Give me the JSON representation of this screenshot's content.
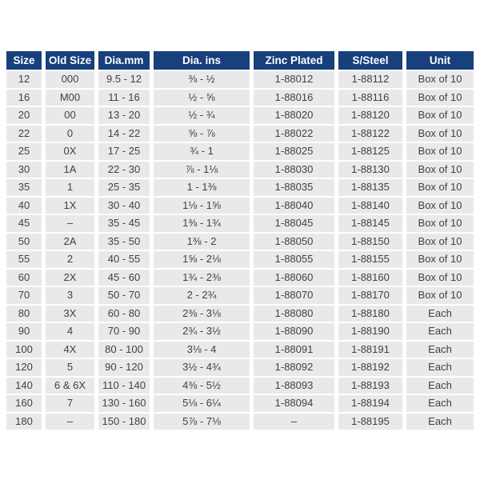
{
  "colors": {
    "header_bg": "#17407c",
    "header_text": "#ffffff",
    "row_bg": "#e9e9eb",
    "row_text": "#414042",
    "page_bg": "#ffffff"
  },
  "table": {
    "headers": [
      "Size",
      "Old Size",
      "Dia.mm",
      "Dia. ins",
      "Zinc Plated",
      "S/Steel",
      "Unit"
    ],
    "rows": [
      [
        "12",
        "000",
        "9.5 - 12",
        "⅜ - ½",
        "1-88012",
        "1-88112",
        "Box of 10"
      ],
      [
        "16",
        "M00",
        "11 - 16",
        "½ - ⅝",
        "1-88016",
        "1-88116",
        "Box of 10"
      ],
      [
        "20",
        "00",
        "13 - 20",
        "½ - ¾",
        "1-88020",
        "1-88120",
        "Box of 10"
      ],
      [
        "22",
        "0",
        "14 - 22",
        "⅝ - ⅞",
        "1-88022",
        "1-88122",
        "Box of 10"
      ],
      [
        "25",
        "0X",
        "17 - 25",
        "¾ - 1",
        "1-88025",
        "1-88125",
        "Box of 10"
      ],
      [
        "30",
        "1A",
        "22 - 30",
        "⅞ - 1⅛",
        "1-88030",
        "1-88130",
        "Box of 10"
      ],
      [
        "35",
        "1",
        "25 - 35",
        "1 - 1⅜",
        "1-88035",
        "1-88135",
        "Box of 10"
      ],
      [
        "40",
        "1X",
        "30 - 40",
        "1⅛ - 1⅝",
        "1-88040",
        "1-88140",
        "Box of 10"
      ],
      [
        "45",
        "–",
        "35 - 45",
        "1⅜ - 1¾",
        "1-88045",
        "1-88145",
        "Box of 10"
      ],
      [
        "50",
        "2A",
        "35 - 50",
        "1⅜ - 2",
        "1-88050",
        "1-88150",
        "Box of 10"
      ],
      [
        "55",
        "2",
        "40 - 55",
        "1⅝ - 2⅛",
        "1-88055",
        "1-88155",
        "Box of 10"
      ],
      [
        "60",
        "2X",
        "45 - 60",
        "1¾ - 2⅜",
        "1-88060",
        "1-88160",
        "Box of 10"
      ],
      [
        "70",
        "3",
        "50 - 70",
        "2 - 2¾",
        "1-88070",
        "1-88170",
        "Box of 10"
      ],
      [
        "80",
        "3X",
        "60 - 80",
        "2⅜ - 3⅛",
        "1-88080",
        "1-88180",
        "Each"
      ],
      [
        "90",
        "4",
        "70 - 90",
        "2¾ - 3½",
        "1-88090",
        "1-88190",
        "Each"
      ],
      [
        "100",
        "4X",
        "80 - 100",
        "3⅛ - 4",
        "1-88091",
        "1-88191",
        "Each"
      ],
      [
        "120",
        "5",
        "90 - 120",
        "3½ - 4¾",
        "1-88092",
        "1-88192",
        "Each"
      ],
      [
        "140",
        "6 & 6X",
        "110 - 140",
        "4⅜ - 5½",
        "1-88093",
        "1-88193",
        "Each"
      ],
      [
        "160",
        "7",
        "130 - 160",
        "5⅛ - 6¼",
        "1-88094",
        "1-88194",
        "Each"
      ],
      [
        "180",
        "–",
        "150 - 180",
        "5⅞ - 7⅛",
        "–",
        "1-88195",
        "Each"
      ]
    ]
  }
}
